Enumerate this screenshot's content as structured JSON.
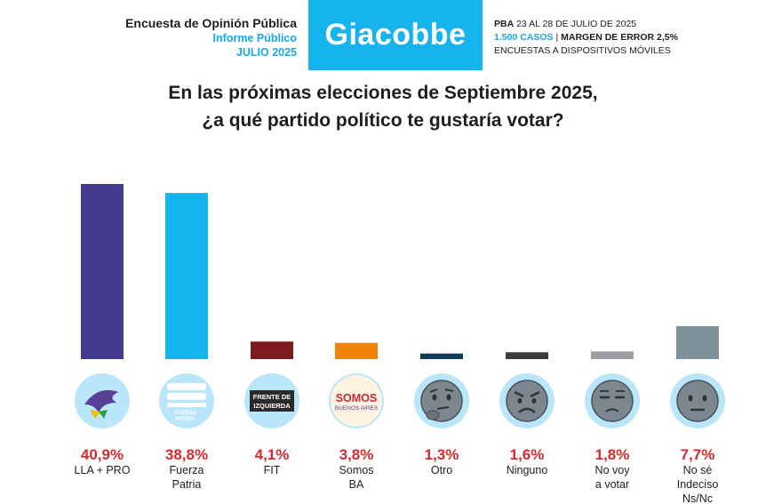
{
  "header": {
    "line1": "Encuesta de Opinión Pública",
    "line2": "Informe Público",
    "line3": "JULIO 2025",
    "brand": "Giacobbe",
    "info_prefix": "PBA",
    "info_dates": "23 AL 28 DE JULIO DE 2025",
    "cases": "1.500 CASOS",
    "separator": "|",
    "margin": "MARGEN DE ERROR 2,5%",
    "method": "ENCUESTAS A DISPOSITIVOS MÓVILES"
  },
  "question": {
    "line1": "En las próximas elecciones de Septiembre 2025,",
    "line2": "¿a qué partido político te gustaría votar?"
  },
  "colors": {
    "brand": "#16b4ef",
    "pct_text": "#d9272e",
    "icon_bg": "#b9e6fa"
  },
  "chart_data": {
    "type": "bar",
    "categories": [
      "LLA + PRO",
      "Fuerza Patria",
      "FIT",
      "Somos BA",
      "Otro",
      "Ninguno",
      "No voy a votar",
      "No sé Indeciso Ns/Nc"
    ],
    "values": [
      40.9,
      38.8,
      4.1,
      3.8,
      1.3,
      1.6,
      1.8,
      7.7
    ],
    "value_labels": [
      "40,9%",
      "38,8%",
      "4,1%",
      "3,8%",
      "1,3%",
      "1,6%",
      "1,8%",
      "7,7%"
    ],
    "label_lines": [
      [
        "LLA + PRO"
      ],
      [
        "Fuerza",
        "Patria"
      ],
      [
        "FIT"
      ],
      [
        "Somos",
        "BA"
      ],
      [
        "Otro"
      ],
      [
        "Ninguno"
      ],
      [
        "No voy",
        "a votar"
      ],
      [
        "No sé",
        "Indeciso",
        "Ns/Nc"
      ]
    ],
    "bar_colors": [
      "#433c8e",
      "#16b4ef",
      "#7c1a1f",
      "#ef8408",
      "#0e3d5c",
      "#3c3c3c",
      "#9b9ea3",
      "#7f929c"
    ],
    "icons": [
      "lla-pro-logo-icon",
      "fuerza-patria-logo-icon",
      "frente-de-izquierda-logo-icon",
      "somos-buenos-aires-logo-icon",
      "thinking-face-icon",
      "angry-face-icon",
      "unamused-face-icon",
      "neutral-face-icon"
    ],
    "logo_text": {
      "fuerza_patria": [
        "FUERZA",
        "PATRIA"
      ],
      "fit": [
        "FRENTE DE",
        "IZQUIERDA"
      ],
      "somos": [
        "SOMOS",
        "BUENOS AIRES"
      ]
    },
    "ylim": [
      0,
      41
    ],
    "grid": false,
    "legend": "none"
  }
}
